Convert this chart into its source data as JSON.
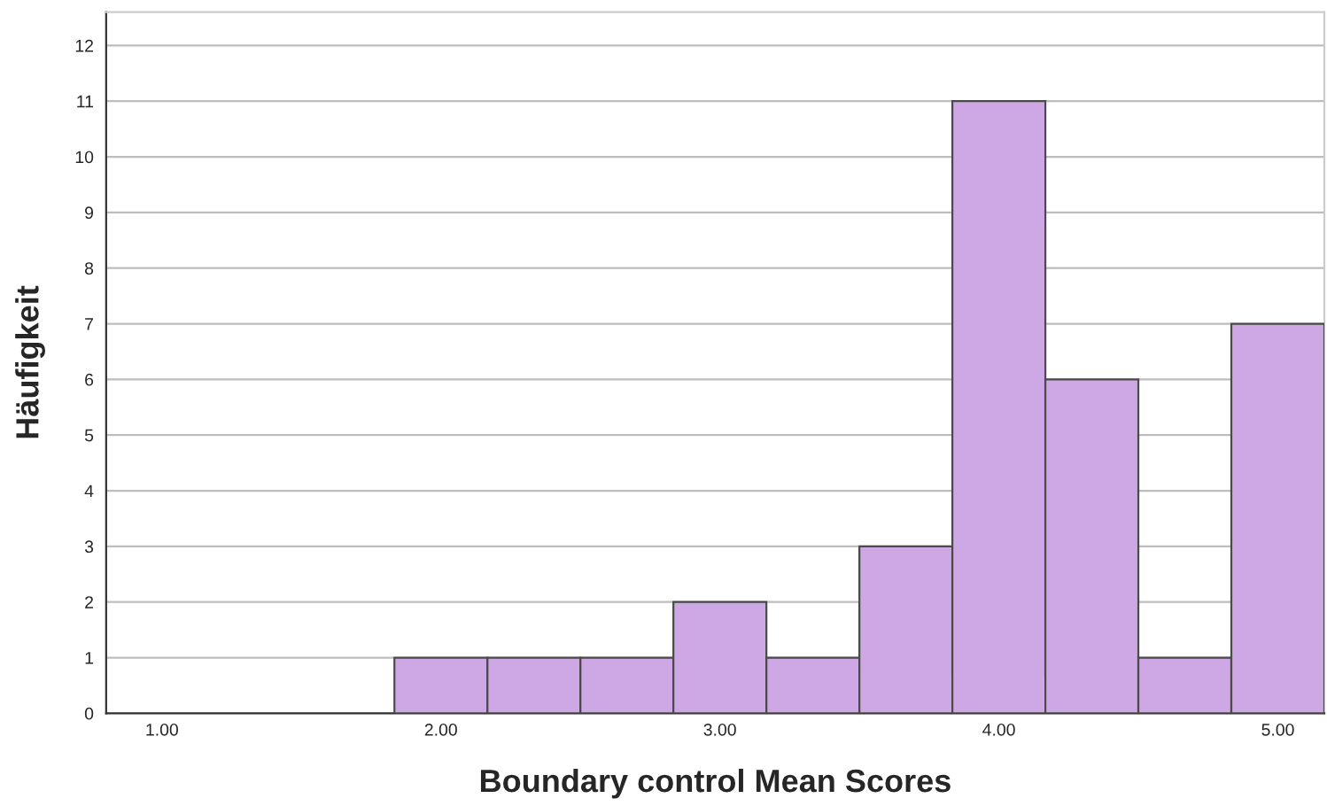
{
  "chart_data": {
    "type": "histogram",
    "xlabel": "Boundary control Mean Scores",
    "ylabel": "Häufigkeit",
    "bins": [
      1.8333,
      2.1667,
      2.5,
      2.8333,
      3.1667,
      3.5,
      3.8333,
      4.1667,
      4.5,
      4.8333,
      5.1667
    ],
    "values": [
      1,
      1,
      1,
      2,
      1,
      3,
      11,
      6,
      1,
      7
    ],
    "color": "#cea8e4",
    "xlim": [
      0.8,
      5.1667
    ],
    "xticks": [
      {
        "value": 1,
        "label": "1.00"
      },
      {
        "value": 2,
        "label": "2.00"
      },
      {
        "value": 3,
        "label": "3.00"
      },
      {
        "value": 4,
        "label": "4.00"
      },
      {
        "value": 5,
        "label": "5.00"
      }
    ],
    "ylim": [
      0,
      12.6
    ],
    "yticks": [
      0,
      1,
      2,
      3,
      4,
      5,
      6,
      7,
      8,
      9,
      10,
      11,
      12
    ],
    "grid": "y"
  }
}
